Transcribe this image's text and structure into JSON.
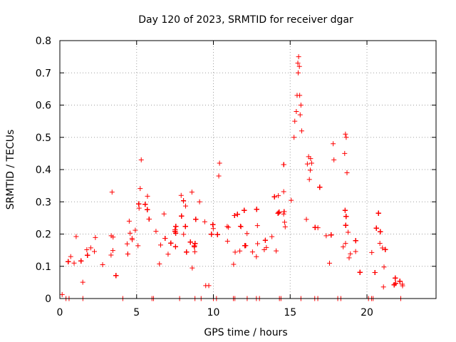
{
  "chart_data": {
    "type": "scatter",
    "title": "Day 120 of 2023, SRMTID for receiver dgar",
    "xlabel": "GPS time / hours",
    "ylabel": "SRMTID / TECUs",
    "xlim": [
      0,
      24.5
    ],
    "ylim": [
      0,
      0.8
    ],
    "xticks": [
      0,
      5,
      10,
      15,
      20
    ],
    "xtick_labels": [
      "0",
      "5",
      "10",
      "15",
      "20"
    ],
    "yticks": [
      0,
      0.1,
      0.2,
      0.3,
      0.4,
      0.5,
      0.6,
      0.7,
      0.8
    ],
    "ytick_labels": [
      "0",
      "0.1",
      "0.2",
      "0.3",
      "0.4",
      "0.5",
      "0.6",
      "0.7",
      "0.8"
    ],
    "grid": true,
    "marker": "+",
    "series": [
      {
        "name": "SRMTID",
        "color": "#ff0000",
        "trend": [
          [
            0.0,
            0.05
          ],
          [
            0.4,
            0.06
          ],
          [
            0.7,
            0.14
          ],
          [
            1.0,
            0.17
          ],
          [
            1.3,
            0.11
          ],
          [
            1.6,
            0.1
          ],
          [
            2.0,
            0.15
          ],
          [
            2.5,
            0.17
          ],
          [
            3.0,
            0.15
          ],
          [
            3.5,
            0.19
          ],
          [
            4.0,
            0.19
          ],
          [
            4.5,
            0.18
          ],
          [
            5.0,
            0.24
          ],
          [
            5.4,
            0.32
          ],
          [
            5.8,
            0.25
          ],
          [
            6.2,
            0.22
          ],
          [
            6.8,
            0.2
          ],
          [
            7.2,
            0.17
          ],
          [
            7.6,
            0.19
          ],
          [
            8.0,
            0.21
          ],
          [
            8.5,
            0.17
          ],
          [
            9.0,
            0.17
          ],
          [
            9.5,
            0.18
          ],
          [
            10.0,
            0.19
          ],
          [
            10.3,
            0.24
          ],
          [
            10.7,
            0.2
          ],
          [
            11.2,
            0.18
          ],
          [
            11.7,
            0.19
          ],
          [
            12.2,
            0.17
          ],
          [
            12.7,
            0.18
          ],
          [
            13.2,
            0.2
          ],
          [
            13.5,
            0.25
          ],
          [
            13.8,
            0.31
          ],
          [
            14.2,
            0.3
          ],
          [
            14.6,
            0.31
          ],
          [
            15.0,
            0.38
          ],
          [
            15.3,
            0.45
          ],
          [
            15.5,
            0.5
          ],
          [
            15.8,
            0.37
          ],
          [
            16.2,
            0.3
          ],
          [
            16.6,
            0.28
          ],
          [
            17.0,
            0.26
          ],
          [
            17.3,
            0.24
          ],
          [
            17.7,
            0.16
          ],
          [
            18.2,
            0.15
          ],
          [
            18.6,
            0.2
          ],
          [
            19.0,
            0.18
          ],
          [
            19.5,
            0.16
          ],
          [
            20.0,
            0.1
          ],
          [
            20.4,
            0.16
          ],
          [
            20.8,
            0.2
          ],
          [
            21.0,
            0.12
          ],
          [
            21.3,
            0.07
          ],
          [
            21.7,
            0.05
          ],
          [
            22.2,
            0.04
          ],
          [
            22.7,
            0.05
          ]
        ],
        "highlights": [
          [
            15.55,
            0.75
          ],
          [
            15.5,
            0.73
          ],
          [
            15.6,
            0.72
          ],
          [
            15.52,
            0.7
          ],
          [
            15.62,
            0.63
          ],
          [
            15.45,
            0.63
          ],
          [
            15.7,
            0.6
          ],
          [
            15.4,
            0.58
          ],
          [
            15.65,
            0.57
          ],
          [
            15.75,
            0.52
          ],
          [
            18.6,
            0.51
          ],
          [
            18.65,
            0.5
          ],
          [
            18.55,
            0.45
          ],
          [
            18.7,
            0.39
          ],
          [
            17.8,
            0.48
          ],
          [
            17.85,
            0.43
          ],
          [
            5.3,
            0.43
          ],
          [
            10.4,
            0.42
          ],
          [
            10.35,
            0.38
          ],
          [
            3.4,
            0.33
          ],
          [
            8.6,
            0.33
          ],
          [
            9.1,
            0.3
          ],
          [
            7.9,
            0.32
          ],
          [
            9.5,
            0.04
          ],
          [
            9.7,
            0.04
          ],
          [
            15.3,
            0.55
          ],
          [
            15.25,
            0.5
          ],
          [
            16.2,
            0.44
          ],
          [
            16.4,
            0.42
          ]
        ],
        "baseline_x": [
          0.4,
          0.6,
          1.5,
          4.1,
          6.0,
          6.1,
          7.8,
          8.8,
          9.2,
          10.0,
          10.2,
          11.3,
          11.4,
          12.2,
          12.8,
          13.0,
          14.3,
          14.4,
          15.7,
          16.6,
          16.8,
          18.1,
          18.3,
          20.1,
          20.3,
          20.4,
          22.2
        ]
      }
    ]
  }
}
